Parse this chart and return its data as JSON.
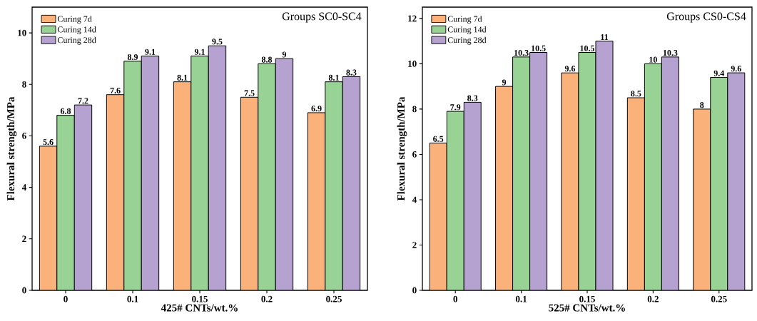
{
  "chart_data": [
    {
      "type": "bar",
      "title": "Groups SC0-SC4",
      "xlabel": "425#   CNTs/wt.%",
      "ylabel": "Flexural strength/MPa",
      "categories": [
        "0",
        "0.1",
        "0.15",
        "0.2",
        "0.25"
      ],
      "series": [
        {
          "name": "Curing 7d",
          "color": "#fbb27a",
          "values": [
            5.6,
            7.6,
            8.1,
            7.5,
            6.9
          ]
        },
        {
          "name": "Curing 14d",
          "color": "#98d294",
          "values": [
            6.8,
            8.9,
            9.1,
            8.8,
            8.1
          ]
        },
        {
          "name": "Curing 28d",
          "color": "#b6a2d1",
          "values": [
            7.2,
            9.1,
            9.5,
            9,
            8.3
          ]
        }
      ],
      "ylim": [
        0,
        11
      ],
      "yticks": [
        0,
        2,
        4,
        6,
        8,
        10
      ],
      "data_labels": true,
      "legend": "top left"
    },
    {
      "type": "bar",
      "title": "Groups CS0-CS4",
      "xlabel": "525#  CNTs/wt.%",
      "ylabel": "Flexural strength/MPa",
      "categories": [
        "0",
        "0.1",
        "0.15",
        "0.2",
        "0.25"
      ],
      "series": [
        {
          "name": "Curing 7d",
          "color": "#fbb27a",
          "values": [
            6.5,
            9,
            9.6,
            8.5,
            8
          ]
        },
        {
          "name": "Curing 14d",
          "color": "#98d294",
          "values": [
            7.9,
            10.3,
            10.5,
            10,
            9.4
          ]
        },
        {
          "name": "Curing 28d",
          "color": "#b6a2d1",
          "values": [
            8.3,
            10.5,
            11,
            10.3,
            9.6
          ]
        }
      ],
      "ylim": [
        0,
        12.5
      ],
      "yticks": [
        0,
        2,
        4,
        6,
        8,
        10,
        12
      ],
      "data_labels": true,
      "legend": "top left"
    }
  ]
}
